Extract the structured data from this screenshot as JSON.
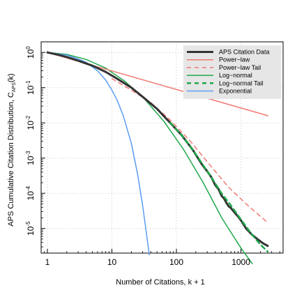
{
  "chart_data": {
    "type": "line",
    "xlabel": "Number of Citations, k + 1",
    "ylabel": "APS Cumulative Citation Distribution, C",
    "ylabel_subscript": "APS",
    "ylabel_suffix": "(k)",
    "x_scale": "log",
    "y_scale": "log",
    "xlim": [
      0.8,
      4500
    ],
    "ylim": [
      2e-06,
      2
    ],
    "x_ticks": [
      {
        "value": 1,
        "label": "1"
      },
      {
        "value": 10,
        "label": "10"
      },
      {
        "value": 100,
        "label": "100"
      },
      {
        "value": 1000,
        "label": "1000"
      }
    ],
    "y_ticks": [
      {
        "value": 1,
        "base": "10",
        "exp": "0"
      },
      {
        "value": 0.1,
        "base": "10",
        "exp": "-1"
      },
      {
        "value": 0.01,
        "base": "10",
        "exp": "-2"
      },
      {
        "value": 0.001,
        "base": "10",
        "exp": "-3"
      },
      {
        "value": 0.0001,
        "base": "10",
        "exp": "-4"
      },
      {
        "value": 1e-05,
        "base": "10",
        "exp": "-5"
      }
    ],
    "grid": "dotted",
    "legend_position": "top-right",
    "series": [
      {
        "name": "APS Citation Data",
        "color": "#333333",
        "dash": "solid",
        "width": 3,
        "x": [
          1,
          1.5,
          2,
          3,
          5,
          8,
          12,
          20,
          30,
          50,
          80,
          120,
          180,
          250,
          300,
          350,
          400,
          450,
          500,
          550,
          600,
          650,
          700,
          800,
          900,
          1000,
          1200,
          1500,
          1800,
          2200,
          2600
        ],
        "y": [
          1,
          0.85,
          0.74,
          0.58,
          0.42,
          0.28,
          0.18,
          0.1,
          0.055,
          0.025,
          0.01,
          0.0045,
          0.0017,
          0.00065,
          0.00042,
          0.00028,
          0.00017,
          0.00013,
          8.5e-05,
          7e-05,
          5.2e-05,
          4.2e-05,
          3.8e-05,
          2.8e-05,
          2.2e-05,
          1.7e-05,
          1e-05,
          6.5e-06,
          5e-06,
          3.8e-06,
          3.2e-06
        ]
      },
      {
        "name": "Power−law",
        "color": "#f07a72",
        "dash": "solid",
        "width": 1.5,
        "x": [
          1,
          2600
        ],
        "y": [
          1,
          0.016
        ]
      },
      {
        "name": "Power−law Tail",
        "color": "#f07a72",
        "dash": "dashed",
        "width": 1.5,
        "x": [
          10,
          20,
          40,
          80,
          160,
          320,
          640,
          1280,
          2560
        ],
        "y": [
          0.18,
          0.085,
          0.038,
          0.012,
          0.0032,
          0.00068,
          0.00015,
          4.5e-05,
          1.5e-05
        ]
      },
      {
        "name": "Log−normal",
        "color": "#1fa84a",
        "dash": "solid",
        "width": 1.5,
        "x": [
          1,
          2,
          4,
          8,
          16,
          32,
          64,
          128,
          256,
          512,
          1024,
          1500
        ],
        "y": [
          1,
          0.88,
          0.63,
          0.36,
          0.15,
          0.048,
          0.011,
          0.0018,
          0.00021,
          1.9e-05,
          2.6e-06,
          1e-06
        ]
      },
      {
        "name": "Log−normal Tail",
        "color": "#1fa84a",
        "dash": "dashed",
        "width": 2.5,
        "x": [
          80,
          120,
          180,
          250,
          350,
          500,
          700,
          1000,
          1500,
          2000,
          2600
        ],
        "y": [
          0.01,
          0.0045,
          0.0017,
          0.0007,
          0.00028,
          0.0001,
          4.5e-05,
          1.8e-05,
          6.5e-06,
          3.5e-06,
          2.2e-06
        ]
      },
      {
        "name": "Exponential",
        "color": "#5b9cf2",
        "dash": "solid",
        "width": 1.5,
        "x": [
          1,
          2,
          3,
          4,
          6,
          8,
          10,
          12,
          15,
          20,
          25,
          30,
          35,
          38
        ],
        "y": [
          1,
          0.84,
          0.65,
          0.52,
          0.3,
          0.165,
          0.085,
          0.045,
          0.016,
          0.0026,
          0.00035,
          4.5e-05,
          5.5e-06,
          1.8e-06
        ]
      }
    ]
  }
}
